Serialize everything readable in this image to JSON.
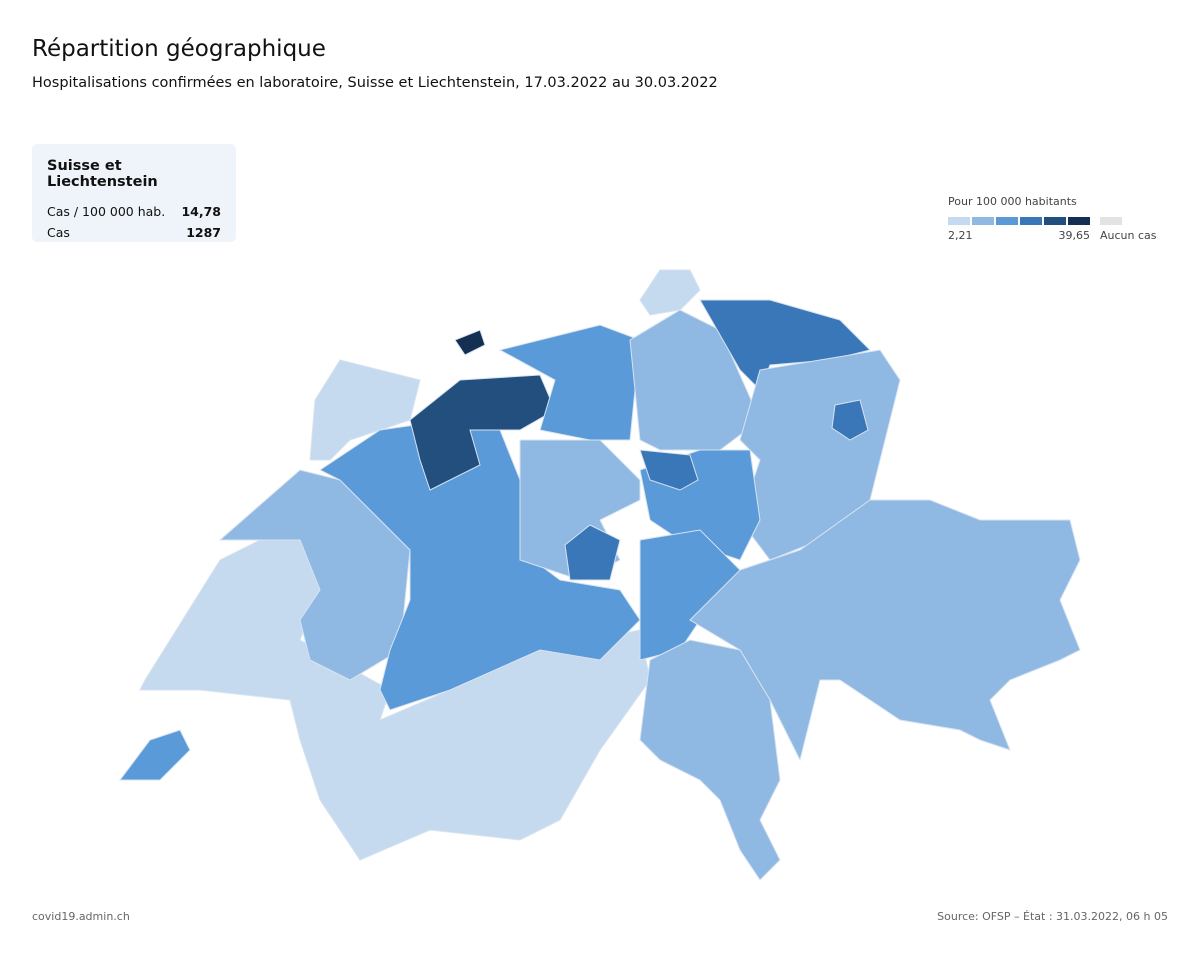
{
  "header": {
    "title": "Répartition géographique",
    "subtitle": "Hospitalisations confirmées en laboratoire, Suisse et Liechtenstein, 17.03.2022 au 30.03.2022"
  },
  "summary": {
    "title": "Suisse et Liechtenstein",
    "rows": [
      [
        "Cas / 100 000 hab.",
        "14,78"
      ],
      [
        "Cas",
        "1287"
      ]
    ]
  },
  "legend": {
    "title": "Pour 100 000 habitants",
    "colors": [
      "#c5d9ef",
      "#8fb8e2",
      "#5a9ad8",
      "#3a77b8",
      "#234f7f",
      "#152f52"
    ],
    "min_label": "2,21",
    "max_label": "39,65",
    "no_case_color": "#e3e3e3",
    "no_case_label": "Aucun cas"
  },
  "footer": {
    "left": "covid19.admin.ch",
    "right": "Source: OFSP – État : 31.03.2022, 06 h 05"
  }
}
